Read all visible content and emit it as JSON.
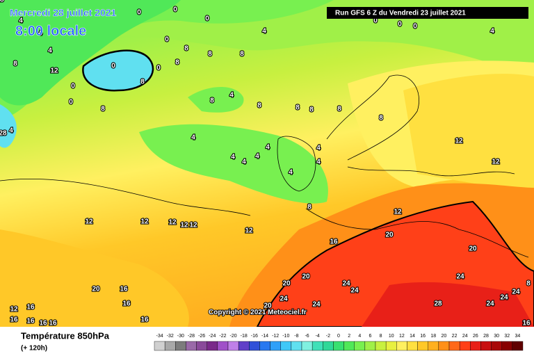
{
  "header": {
    "date": "Mercredi 28 juillet 2021",
    "time": "8:00 locale",
    "run": "Run GFS 6 Z du Vendredi 23 juillet 2021"
  },
  "copyright": "Copyright © 2021 Meteociel.fr",
  "footer": {
    "title": "Température 850hPa",
    "lead": "(+ 120h)"
  },
  "contour_labels": [
    0,
    0,
    0,
    4,
    4,
    4,
    4,
    8,
    12,
    0,
    0,
    8,
    0,
    8,
    0,
    0,
    8,
    8,
    8,
    8,
    0,
    0,
    0,
    4,
    8,
    4,
    8,
    8,
    8,
    8,
    8,
    4,
    4,
    4,
    4,
    4,
    4,
    4,
    4,
    8,
    12,
    12,
    12,
    12,
    12,
    12,
    12,
    12,
    12,
    16,
    20,
    20,
    20,
    20,
    24,
    24,
    24,
    24,
    24,
    24,
    24,
    20,
    24,
    28,
    20,
    16,
    16,
    12,
    16,
    16,
    16,
    16,
    16,
    16,
    16,
    28,
    4,
    8,
    28
  ],
  "scale": [
    {
      "value": -34,
      "color": "#d0d0d0"
    },
    {
      "value": -32,
      "color": "#a8a8a8"
    },
    {
      "value": -30,
      "color": "#7c7c7c"
    },
    {
      "value": -28,
      "color": "#9a6aa8"
    },
    {
      "value": -26,
      "color": "#8a4a9a"
    },
    {
      "value": -24,
      "color": "#7a2a8a"
    },
    {
      "value": -22,
      "color": "#a050c8"
    },
    {
      "value": -20,
      "color": "#c080e8"
    },
    {
      "value": -18,
      "color": "#6040c8"
    },
    {
      "value": -16,
      "color": "#3050d8"
    },
    {
      "value": -14,
      "color": "#2878f0"
    },
    {
      "value": -12,
      "color": "#30a0f8"
    },
    {
      "value": -10,
      "color": "#40c8f8"
    },
    {
      "value": -8,
      "color": "#60e0f0"
    },
    {
      "value": -6,
      "color": "#80f0e0"
    },
    {
      "value": -4,
      "color": "#40e0b8"
    },
    {
      "value": -2,
      "color": "#30d898"
    },
    {
      "value": 0,
      "color": "#38e070"
    },
    {
      "value": 2,
      "color": "#50e858"
    },
    {
      "value": 4,
      "color": "#78f050"
    },
    {
      "value": 6,
      "color": "#a0f048"
    },
    {
      "value": 8,
      "color": "#c8f040"
    },
    {
      "value": 10,
      "color": "#e8f040"
    },
    {
      "value": 12,
      "color": "#fff060"
    },
    {
      "value": 14,
      "color": "#ffe040"
    },
    {
      "value": 16,
      "color": "#ffc828"
    },
    {
      "value": 18,
      "color": "#ffb020"
    },
    {
      "value": 20,
      "color": "#ff9018"
    },
    {
      "value": 22,
      "color": "#ff6818"
    },
    {
      "value": 24,
      "color": "#ff4018"
    },
    {
      "value": 26,
      "color": "#e82018"
    },
    {
      "value": 28,
      "color": "#c81010"
    },
    {
      "value": 30,
      "color": "#a80808"
    },
    {
      "value": 32,
      "color": "#880000"
    },
    {
      "value": 34,
      "color": "#600000"
    }
  ]
}
